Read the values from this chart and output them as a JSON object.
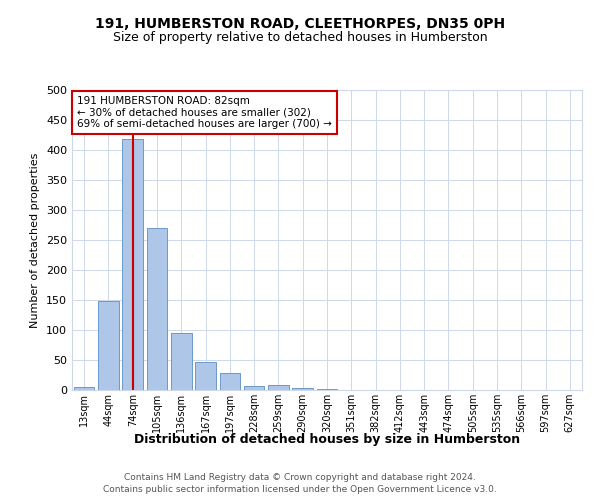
{
  "title1": "191, HUMBERSTON ROAD, CLEETHORPES, DN35 0PH",
  "title2": "Size of property relative to detached houses in Humberston",
  "xlabel": "Distribution of detached houses by size in Humberston",
  "ylabel": "Number of detached properties",
  "bin_labels": [
    "13sqm",
    "44sqm",
    "74sqm",
    "105sqm",
    "136sqm",
    "167sqm",
    "197sqm",
    "228sqm",
    "259sqm",
    "290sqm",
    "320sqm",
    "351sqm",
    "382sqm",
    "412sqm",
    "443sqm",
    "474sqm",
    "505sqm",
    "535sqm",
    "566sqm",
    "597sqm",
    "627sqm"
  ],
  "bar_heights": [
    5,
    148,
    418,
    270,
    95,
    47,
    29,
    7,
    9,
    4,
    2,
    0,
    0,
    0,
    0,
    0,
    0,
    0,
    0,
    0,
    0
  ],
  "bar_color": "#aec6e8",
  "bar_edgecolor": "#5a8fc2",
  "red_line_x": 2,
  "annotation_line1": "191 HUMBERSTON ROAD: 82sqm",
  "annotation_line2": "← 30% of detached houses are smaller (302)",
  "annotation_line3": "69% of semi-detached houses are larger (700) →",
  "annotation_box_color": "#ffffff",
  "annotation_box_edgecolor": "#cc0000",
  "ylim": [
    0,
    500
  ],
  "yticks": [
    0,
    50,
    100,
    150,
    200,
    250,
    300,
    350,
    400,
    450,
    500
  ],
  "footer1": "Contains HM Land Registry data © Crown copyright and database right 2024.",
  "footer2": "Contains public sector information licensed under the Open Government Licence v3.0.",
  "background_color": "#ffffff",
  "grid_color": "#cdd8ea"
}
